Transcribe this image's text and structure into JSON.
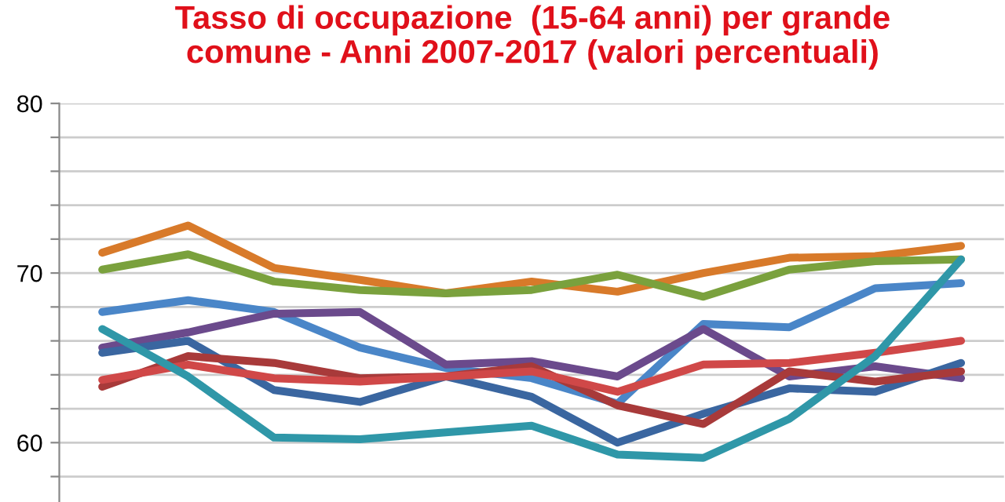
{
  "chart_data": {
    "type": "line",
    "title": "Tasso di occupazione  (15-64 anni) per grande\ncomune - Anni 2007-2017 (valori percentuali)",
    "categories": [
      null,
      null,
      null,
      null,
      null,
      null,
      null,
      null,
      null,
      null,
      null
    ],
    "series": [
      {
        "color": "#d87a2a",
        "values": [
          71.2,
          72.8,
          70.3,
          69.6,
          68.8,
          69.5,
          68.9,
          70.0,
          70.9,
          71.0,
          71.6
        ]
      },
      {
        "color": "#7aa13d",
        "values": [
          70.2,
          71.1,
          69.5,
          69.0,
          68.8,
          69.0,
          69.9,
          68.6,
          70.2,
          70.7,
          70.8
        ]
      },
      {
        "color": "#4a86c8",
        "values": [
          67.7,
          68.4,
          67.7,
          65.6,
          64.4,
          63.8,
          62.3,
          67.0,
          66.8,
          69.1,
          69.4
        ]
      },
      {
        "color": "#6b4a8c",
        "values": [
          65.6,
          66.5,
          67.6,
          67.7,
          64.6,
          64.8,
          63.9,
          66.7,
          63.9,
          64.5,
          63.8
        ]
      },
      {
        "color": "#3a66a0",
        "values": [
          65.3,
          66.0,
          63.1,
          62.4,
          63.9,
          62.7,
          60.0,
          61.7,
          63.2,
          63.0,
          64.7
        ]
      },
      {
        "color": "#a83a3a",
        "values": [
          63.3,
          65.1,
          64.7,
          63.8,
          63.9,
          64.5,
          62.2,
          61.1,
          64.2,
          63.6,
          64.2
        ]
      },
      {
        "color": "#d04848",
        "values": [
          63.7,
          64.6,
          63.8,
          63.6,
          63.9,
          64.2,
          63.0,
          64.6,
          64.7,
          65.3,
          66.0
        ]
      },
      {
        "color": "#2f97a8",
        "values": [
          66.7,
          63.9,
          60.3,
          60.2,
          60.6,
          61.0,
          59.3,
          59.1,
          61.4,
          65.1,
          70.8
        ]
      }
    ],
    "ylim": [
      56.5,
      80
    ],
    "yticks": [
      {
        "value": 58,
        "label": null
      },
      60,
      {
        "value": 62,
        "label": null
      },
      {
        "value": 64,
        "label": null
      },
      {
        "value": 66,
        "label": null
      },
      {
        "value": 68,
        "label": null
      },
      70,
      {
        "value": 72,
        "label": null
      },
      {
        "value": 74,
        "label": null
      },
      {
        "value": 76,
        "label": null
      },
      {
        "value": 78,
        "label": null
      },
      80
    ],
    "grid": "y",
    "tick_labels": "y"
  }
}
